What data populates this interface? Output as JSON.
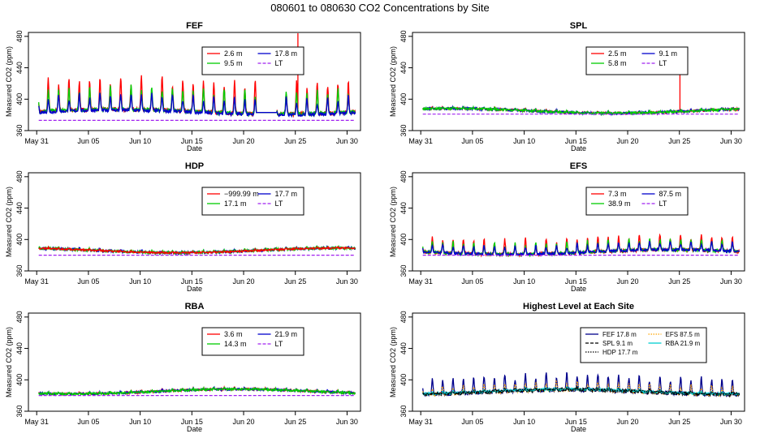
{
  "figure": {
    "title": "080601  to  080630 CO2 Concentrations by Site"
  },
  "chart_data": [
    {
      "id": "FEF",
      "type": "line",
      "title": "FEF",
      "xlabel": "Date",
      "ylabel": "Measured CO2 (ppm)",
      "x_ticks": [
        "May 31",
        "Jun 05",
        "Jun 10",
        "Jun 15",
        "Jun 20",
        "Jun 25",
        "Jun 30"
      ],
      "y_ticks": [
        360,
        400,
        440,
        480
      ],
      "ylim": [
        360,
        485
      ],
      "legend": {
        "position": "top-right",
        "columns": 2
      },
      "series": [
        {
          "name": "2.6 m",
          "color": "#ff0000",
          "base": 384,
          "amp": 34,
          "noise": 2.5,
          "spike": {
            "day": 25.25,
            "value": 484
          }
        },
        {
          "name": "17.8 m",
          "color": "#0000cd",
          "base": 383,
          "amp": 18,
          "noise": 2.0
        },
        {
          "name": "9.5 m",
          "color": "#00cd00",
          "base": 384,
          "amp": 25,
          "noise": 2.2
        },
        {
          "name": "LT",
          "color": "#a020f0",
          "constant": 373,
          "dashed": true
        }
      ],
      "gap": {
        "start": 21.2,
        "end": 23.2,
        "level": 383,
        "note": "straight interpolation segment"
      }
    },
    {
      "id": "SPL",
      "type": "line",
      "title": "SPL",
      "xlabel": "Date",
      "ylabel": "Measured CO2 (ppm)",
      "x_ticks": [
        "May 31",
        "Jun 05",
        "Jun 10",
        "Jun 15",
        "Jun 20",
        "Jun 25",
        "Jun 30"
      ],
      "y_ticks": [
        360,
        400,
        440,
        480
      ],
      "ylim": [
        360,
        485
      ],
      "legend": {
        "position": "top-right",
        "columns": 2
      },
      "series": [
        {
          "name": "2.5 m",
          "color": "#ff0000",
          "base": 385,
          "amp": 1.5,
          "noise": 1.2,
          "spike": {
            "day": 25.05,
            "value": 443
          }
        },
        {
          "name": "9.1 m",
          "color": "#0000cd",
          "base": 385,
          "amp": 1.5,
          "noise": 1.5
        },
        {
          "name": "5.8 m",
          "color": "#00cd00",
          "base": 385,
          "amp": 1.5,
          "noise": 1.2
        },
        {
          "name": "LT",
          "color": "#a020f0",
          "constant": 381,
          "dashed": true
        }
      ]
    },
    {
      "id": "HDP",
      "type": "line",
      "title": "HDP",
      "xlabel": "Date",
      "ylabel": "Measured CO2 (ppm)",
      "x_ticks": [
        "May 31",
        "Jun 05",
        "Jun 10",
        "Jun 15",
        "Jun 20",
        "Jun 25",
        "Jun 30"
      ],
      "y_ticks": [
        360,
        400,
        440,
        480
      ],
      "ylim": [
        360,
        485
      ],
      "legend": {
        "position": "top-right",
        "columns": 2
      },
      "series": [
        {
          "name": "−999.99 m",
          "color": "#ff0000",
          "base": 386,
          "amp": 1,
          "noise": 1.0
        },
        {
          "name": "17.7 m",
          "color": "#0000cd",
          "base": 386,
          "amp": 1.5,
          "noise": 1.5
        },
        {
          "name": "17.1 m",
          "color": "#00cd00",
          "base": 386,
          "amp": 1.5,
          "noise": 1.5
        },
        {
          "name": "LT",
          "color": "#a020f0",
          "constant": 380,
          "dashed": true
        }
      ]
    },
    {
      "id": "EFS",
      "type": "line",
      "title": "EFS",
      "xlabel": "Date",
      "ylabel": "Measured CO2 (ppm)",
      "x_ticks": [
        "May 31",
        "Jun 05",
        "Jun 10",
        "Jun 15",
        "Jun 20",
        "Jun 25",
        "Jun 30"
      ],
      "y_ticks": [
        360,
        400,
        440,
        480
      ],
      "ylim": [
        360,
        485
      ],
      "legend": {
        "position": "top-right",
        "columns": 2
      },
      "series": [
        {
          "name": "7.3 m",
          "color": "#ff0000",
          "base": 384,
          "amp": 16,
          "noise": 2.0
        },
        {
          "name": "87.5 m",
          "color": "#0000cd",
          "base": 384,
          "amp": 9,
          "noise": 1.5
        },
        {
          "name": "38.9 m",
          "color": "#00cd00",
          "base": 384,
          "amp": 12,
          "noise": 1.8
        },
        {
          "name": "LT",
          "color": "#a020f0",
          "constant": 380,
          "dashed": true
        }
      ]
    },
    {
      "id": "RBA",
      "type": "line",
      "title": "RBA",
      "xlabel": "Date",
      "ylabel": "Measured CO2 (ppm)",
      "x_ticks": [
        "May 31",
        "Jun 05",
        "Jun 10",
        "Jun 15",
        "Jun 20",
        "Jun 25",
        "Jun 30"
      ],
      "y_ticks": [
        360,
        400,
        440,
        480
      ],
      "ylim": [
        360,
        485
      ],
      "legend": {
        "position": "top-right",
        "columns": 2
      },
      "series": [
        {
          "name": "3.6 m",
          "color": "#ff0000",
          "base": 385,
          "amp": 1.5,
          "noise": 1.2
        },
        {
          "name": "21.9 m",
          "color": "#0000cd",
          "base": 385,
          "amp": 1.5,
          "noise": 1.3
        },
        {
          "name": "14.3 m",
          "color": "#00cd00",
          "base": 385,
          "amp": 1.5,
          "noise": 1.2
        },
        {
          "name": "LT",
          "color": "#a020f0",
          "constant": 380,
          "dashed": true
        }
      ]
    },
    {
      "id": "HIGHEST",
      "type": "line",
      "title": "Highest Level at Each Site",
      "xlabel": "Date",
      "ylabel": "Measured CO2 (ppm)",
      "x_ticks": [
        "May 31",
        "Jun 05",
        "Jun 10",
        "Jun 15",
        "Jun 20",
        "Jun 25",
        "Jun 30"
      ],
      "y_ticks": [
        360,
        400,
        440,
        480
      ],
      "ylim": [
        360,
        485
      ],
      "legend": {
        "position": "top-right",
        "columns": 2
      },
      "series": [
        {
          "name": "FEF  17.8 m",
          "color": "#00008b",
          "base": 384,
          "amp": 18,
          "noise": 2.0
        },
        {
          "name": "EFS  87.5 m",
          "color": "#ffa500",
          "base": 384,
          "amp": 9,
          "noise": 1.5,
          "dotted": true
        },
        {
          "name": "SPL  9.1 m",
          "color": "#000000",
          "base": 384,
          "amp": 2,
          "noise": 1.5,
          "dashed": true
        },
        {
          "name": "RBA  21.9 m",
          "color": "#00ced1",
          "base": 385,
          "amp": 1.5,
          "noise": 1.3
        },
        {
          "name": "HDP  17.7 m",
          "color": "#000000",
          "base": 385,
          "amp": 1.5,
          "noise": 1.3,
          "dotted": true
        }
      ]
    }
  ]
}
